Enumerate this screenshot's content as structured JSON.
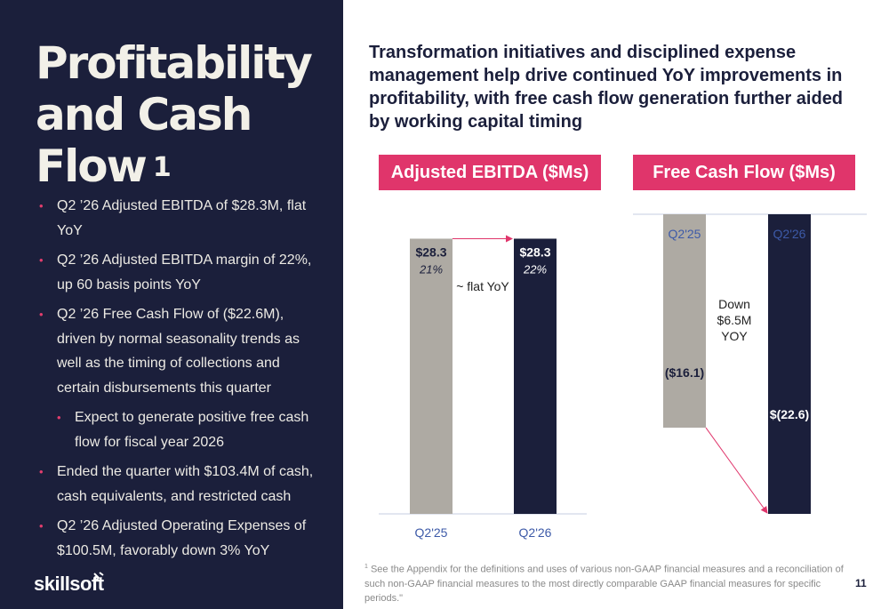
{
  "sidebar": {
    "title": "Profitability and Cash Flow",
    "title_footnote": "1",
    "bullets": [
      {
        "text": "Q2 ’26 Adjusted EBITDA of $28.3M, flat YoY",
        "level": 1
      },
      {
        "text": "Q2 ’26 Adjusted EBITDA margin of 22%, up 60 basis points YoY",
        "level": 1
      },
      {
        "text": "Q2 ’26 Free Cash Flow of ($22.6M), driven by normal seasonality trends as well as the timing of collections and certain disbursements this quarter",
        "level": 1
      },
      {
        "text": "Expect to generate positive free cash flow for fiscal year 2026",
        "level": 2
      },
      {
        "text": "Ended the quarter with $103.4M of cash, cash equivalents, and restricted cash",
        "level": 1
      },
      {
        "text": "Q2 ’26 Adjusted Operating Expenses of $100.5M, favorably down 3% YoY",
        "level": 1
      }
    ],
    "logo": "skillsoft"
  },
  "headline": "Transformation initiatives and disciplined expense management help drive continued YoY improvements in profitability, with free cash flow generation further aided by working capital timing",
  "colors": {
    "navy": "#1b1f3b",
    "gray_bar": "#aeaaa3",
    "accent_pink": "#e0356b",
    "axis_label_blue": "#3d5aa8"
  },
  "chart_data": [
    {
      "type": "bar",
      "title": "Adjusted EBITDA ($Ms)",
      "categories": [
        "Q2'25",
        "Q2'26"
      ],
      "values": [
        28.3,
        28.3
      ],
      "value_labels": [
        "$28.3",
        "$28.3"
      ],
      "margin_labels": [
        "21%",
        "22%"
      ],
      "bar_colors": [
        "#aeaaa3",
        "#1b1f3b"
      ],
      "annotation": "~ flat YoY",
      "ylim": [
        0,
        32
      ]
    },
    {
      "type": "bar",
      "title": "Free Cash Flow ($Ms)",
      "categories": [
        "Q2'25",
        "Q2'26"
      ],
      "values": [
        -16.1,
        -22.6
      ],
      "value_labels": [
        "($16.1)",
        "$(22.6)"
      ],
      "bar_colors": [
        "#aeaaa3",
        "#1b1f3b"
      ],
      "annotation": "Down $6.5M YOY",
      "ylim": [
        -22.6,
        0
      ]
    }
  ],
  "footnote": {
    "marker": "1",
    "text": " See the Appendix for the definitions and uses of various non-GAAP financial measures and a reconciliation of such non-GAAP financial measures to the most directly comparable GAAP financial measures for specific periods.\""
  },
  "page_number": "11"
}
